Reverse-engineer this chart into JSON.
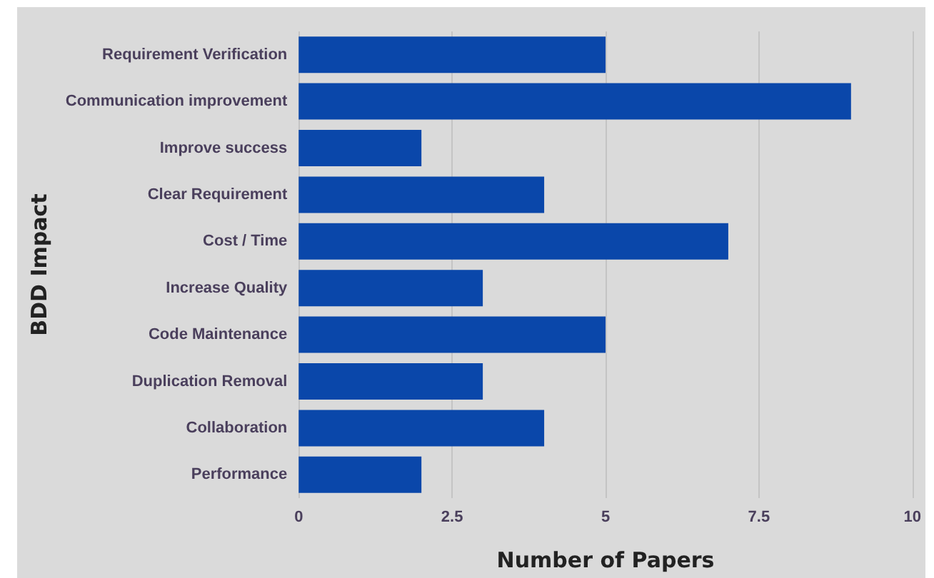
{
  "chart_data": {
    "type": "bar",
    "orientation": "horizontal",
    "xlabel": "Number of Papers",
    "ylabel": "BDD Impact",
    "categories": [
      "Requirement Verification",
      "Communication improvement",
      "Improve success",
      "Clear Requirement",
      "Cost / Time",
      "Increase Quality",
      "Code Maintenance",
      "Duplication Removal",
      "Collaboration",
      "Performance"
    ],
    "values": [
      5,
      9,
      2,
      4,
      7,
      3,
      5,
      3,
      4,
      2
    ],
    "color": "#0a47aa",
    "xlim": [
      0,
      10
    ],
    "xticks": [
      0,
      2.5,
      5,
      7.5,
      10
    ],
    "grid": "x"
  }
}
